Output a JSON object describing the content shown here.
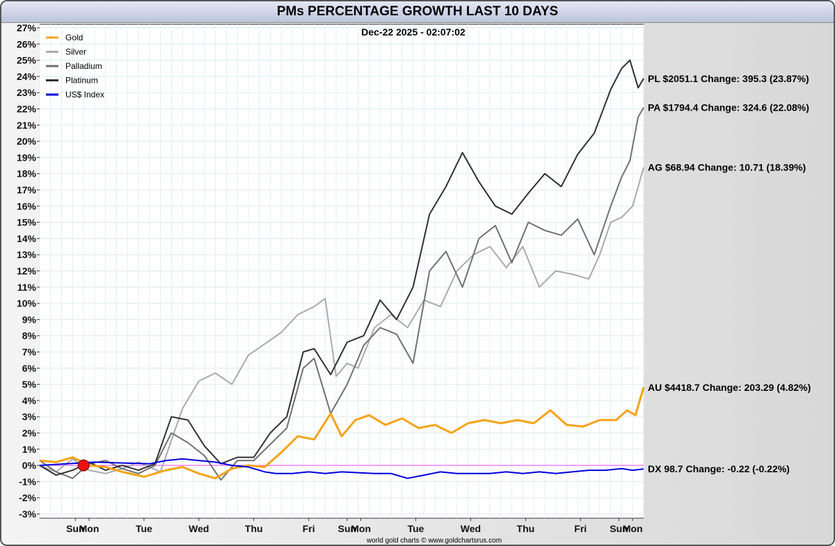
{
  "chart_data": {
    "type": "line",
    "title": "PMs PERCENTAGE GROWTH LAST 10 DAYS",
    "timestamp": "Dec-22  2025 - 02:07:02",
    "credit": "world gold charts © www.goldchartsrus.com",
    "ylabel_format": "percent",
    "ylim": [
      -3,
      27
    ],
    "yticks": [
      "27%",
      "26%",
      "25%",
      "24%",
      "23%",
      "22%",
      "21%",
      "20%",
      "19%",
      "18%",
      "17%",
      "16%",
      "15%",
      "14%",
      "13%",
      "12%",
      "11%",
      "10%",
      "9%",
      "8%",
      "7%",
      "6%",
      "5%",
      "4%",
      "3%",
      "2%",
      "1%",
      "0%",
      "-1%",
      "-2%",
      "-3%"
    ],
    "xlim": [
      0,
      11
    ],
    "x_ticks": [
      {
        "label": "Sun",
        "x": 0.65
      },
      {
        "label": "Mon",
        "x": 0.9
      },
      {
        "label": "Tue",
        "x": 1.9
      },
      {
        "label": "Wed",
        "x": 2.9
      },
      {
        "label": "Thu",
        "x": 3.9
      },
      {
        "label": "Fri",
        "x": 4.9
      },
      {
        "label": "Sun",
        "x": 5.6
      },
      {
        "label": "Mon",
        "x": 5.85
      },
      {
        "label": "Tue",
        "x": 6.85
      },
      {
        "label": "Wed",
        "x": 7.85
      },
      {
        "label": "Thu",
        "x": 8.85
      },
      {
        "label": "Fri",
        "x": 9.85
      },
      {
        "label": "Sun",
        "x": 10.55
      },
      {
        "label": "Mon",
        "x": 10.8
      }
    ],
    "series": [
      {
        "name": "Gold",
        "color": "#f5a316",
        "width": 3,
        "x": [
          0,
          0.3,
          0.6,
          0.9,
          1.2,
          1.5,
          1.9,
          2.3,
          2.6,
          2.9,
          3.2,
          3.5,
          3.8,
          4.1,
          4.4,
          4.7,
          5.0,
          5.3,
          5.5,
          5.75,
          6.0,
          6.3,
          6.6,
          6.9,
          7.2,
          7.5,
          7.8,
          8.1,
          8.4,
          8.7,
          9.0,
          9.3,
          9.6,
          9.9,
          10.2,
          10.5,
          10.7,
          10.85,
          11.0
        ],
        "values": [
          0.3,
          0.2,
          0.5,
          0.0,
          -0.1,
          -0.4,
          -0.7,
          -0.3,
          -0.1,
          -0.5,
          -0.8,
          -0.2,
          0.0,
          -0.1,
          0.8,
          1.8,
          1.6,
          3.2,
          1.8,
          2.8,
          3.1,
          2.5,
          2.9,
          2.3,
          2.5,
          2.0,
          2.6,
          2.8,
          2.6,
          2.8,
          2.6,
          3.4,
          2.5,
          2.4,
          2.8,
          2.8,
          3.4,
          3.1,
          4.82
        ]
      },
      {
        "name": "Silver",
        "color": "#aaaaaa",
        "width": 2,
        "x": [
          0,
          0.3,
          0.6,
          0.9,
          1.2,
          1.5,
          1.8,
          2.2,
          2.6,
          2.9,
          3.2,
          3.5,
          3.8,
          4.1,
          4.4,
          4.7,
          5.0,
          5.2,
          5.4,
          5.6,
          5.8,
          6.1,
          6.4,
          6.7,
          7.0,
          7.3,
          7.6,
          7.9,
          8.2,
          8.5,
          8.8,
          9.1,
          9.4,
          9.7,
          10.0,
          10.2,
          10.4,
          10.6,
          10.8,
          11.0
        ],
        "values": [
          0.0,
          -0.4,
          0.4,
          -0.3,
          -0.5,
          -0.2,
          0.2,
          -0.4,
          3.5,
          5.2,
          5.7,
          5.0,
          6.8,
          7.5,
          8.2,
          9.3,
          9.8,
          10.3,
          5.5,
          6.3,
          6.0,
          8.5,
          9.3,
          8.5,
          10.2,
          9.8,
          12.0,
          13.0,
          13.5,
          12.2,
          13.5,
          11.0,
          12.0,
          11.8,
          11.5,
          13.0,
          15.0,
          15.3,
          16.0,
          18.39
        ]
      },
      {
        "name": "Palladium",
        "color": "#707070",
        "width": 2,
        "x": [
          0,
          0.3,
          0.6,
          0.9,
          1.2,
          1.5,
          1.8,
          2.1,
          2.4,
          2.7,
          3.0,
          3.3,
          3.6,
          3.9,
          4.2,
          4.5,
          4.8,
          5.0,
          5.3,
          5.6,
          5.9,
          6.2,
          6.5,
          6.8,
          7.1,
          7.4,
          7.7,
          8.0,
          8.3,
          8.6,
          8.9,
          9.2,
          9.5,
          9.8,
          10.1,
          10.4,
          10.6,
          10.75,
          10.9,
          11.0
        ],
        "values": [
          0.3,
          -0.4,
          -0.8,
          0.1,
          0.3,
          -0.2,
          -0.5,
          0.0,
          2.0,
          1.4,
          0.6,
          -0.9,
          0.3,
          0.3,
          1.3,
          2.3,
          6.0,
          6.6,
          3.2,
          5.0,
          7.4,
          8.5,
          8.1,
          6.3,
          12.0,
          13.2,
          11.0,
          14.0,
          14.8,
          12.5,
          15.0,
          14.5,
          14.2,
          15.2,
          13.0,
          16.0,
          17.8,
          18.8,
          21.5,
          22.08
        ]
      },
      {
        "name": "Platinum",
        "color": "#303030",
        "width": 2,
        "x": [
          0,
          0.3,
          0.6,
          0.9,
          1.2,
          1.5,
          1.8,
          2.1,
          2.4,
          2.7,
          3.0,
          3.3,
          3.6,
          3.9,
          4.2,
          4.5,
          4.8,
          5.0,
          5.3,
          5.6,
          5.9,
          6.2,
          6.5,
          6.8,
          7.1,
          7.4,
          7.7,
          8.0,
          8.3,
          8.6,
          8.9,
          9.2,
          9.5,
          9.8,
          10.1,
          10.4,
          10.6,
          10.75,
          10.9,
          11.0
        ],
        "values": [
          0.0,
          -0.6,
          -0.3,
          0.2,
          -0.3,
          0.0,
          -0.3,
          0.1,
          3.0,
          2.8,
          1.2,
          0.1,
          0.5,
          0.5,
          2.0,
          3.0,
          7.0,
          7.2,
          5.6,
          7.6,
          8.0,
          10.2,
          9.0,
          11.0,
          15.5,
          17.2,
          19.3,
          17.5,
          16.0,
          15.5,
          16.8,
          18.0,
          17.2,
          19.2,
          20.5,
          23.2,
          24.5,
          25.0,
          23.3,
          23.87
        ]
      },
      {
        "name": "US$ Index",
        "color": "#0000dd",
        "width": 2,
        "x": [
          0,
          0.5,
          1.0,
          1.5,
          2.0,
          2.3,
          2.6,
          2.9,
          3.2,
          3.5,
          3.8,
          4.1,
          4.3,
          4.6,
          4.9,
          5.2,
          5.5,
          5.8,
          6.1,
          6.4,
          6.7,
          7.0,
          7.3,
          7.6,
          7.9,
          8.2,
          8.5,
          8.8,
          9.1,
          9.4,
          9.7,
          10.0,
          10.3,
          10.6,
          10.8,
          11.0
        ],
        "values": [
          0.0,
          0.1,
          0.2,
          0.15,
          0.1,
          0.3,
          0.4,
          0.3,
          0.2,
          0.0,
          -0.1,
          -0.4,
          -0.5,
          -0.5,
          -0.4,
          -0.5,
          -0.4,
          -0.45,
          -0.5,
          -0.5,
          -0.8,
          -0.6,
          -0.4,
          -0.5,
          -0.5,
          -0.5,
          -0.4,
          -0.5,
          -0.4,
          -0.5,
          -0.4,
          -0.3,
          -0.3,
          -0.2,
          -0.3,
          -0.22
        ]
      }
    ],
    "zero_line_color": "#ff44ff",
    "marker": {
      "x": 0.8,
      "y": 0,
      "color": "#ee1111"
    },
    "annotations": [
      {
        "text": "PL $2051.1  Change: 395.3 (23.87%)",
        "y": 23.87
      },
      {
        "text": "PA $1794.4  Change: 324.6 (22.08%)",
        "y": 22.08
      },
      {
        "text": "AG $68.94  Change: 10.71 (18.39%)",
        "y": 18.39
      },
      {
        "text": "AU $4418.7  Change: 203.29 (4.82%)",
        "y": 4.82
      },
      {
        "text": "DX 98.7  Change: -0.22 (-0.22%)",
        "y": -0.22
      }
    ]
  }
}
